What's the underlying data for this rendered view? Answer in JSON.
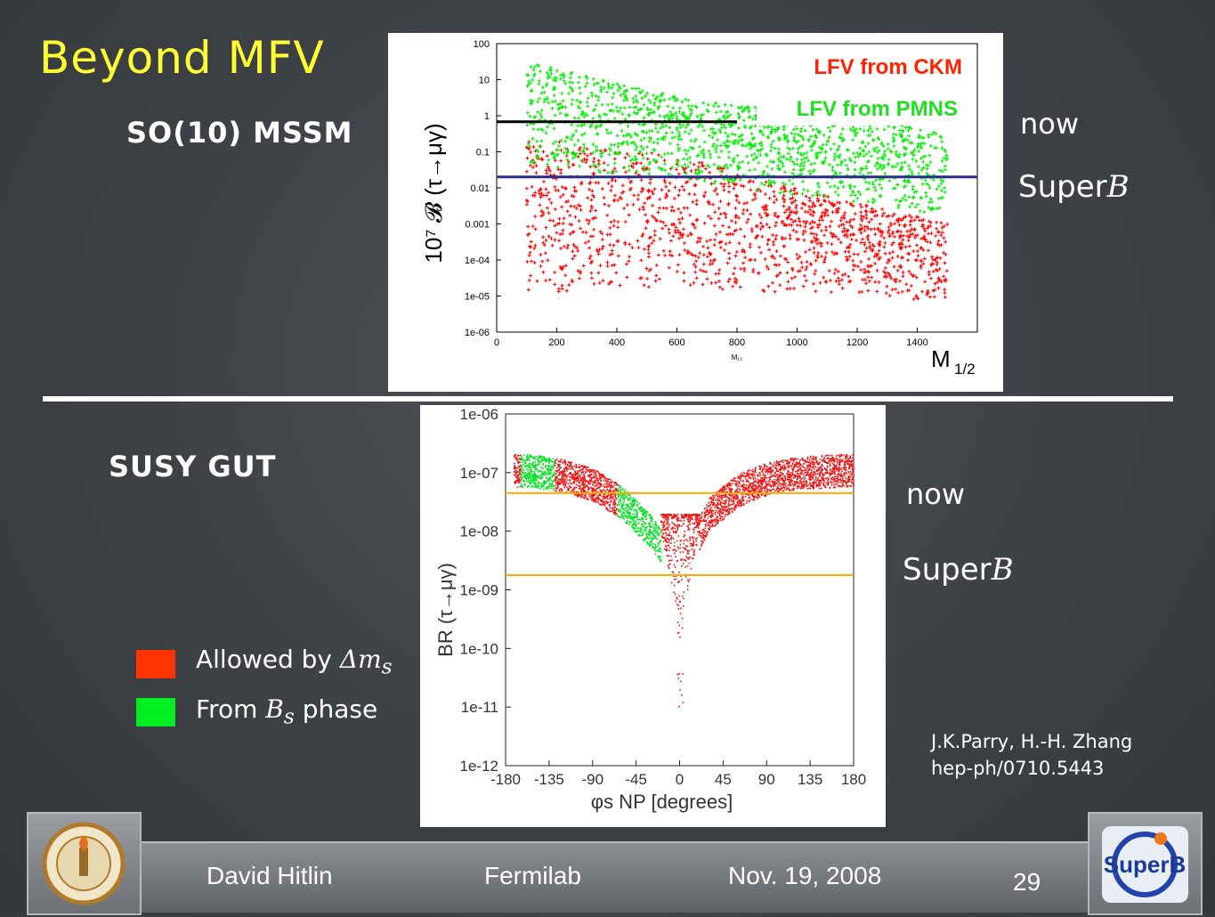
{
  "slide": {
    "title": "Beyond MFV",
    "top_heading": "SO(10) MSSM",
    "bottom_heading": "SUSY GUT",
    "now_label": "now",
    "superb_prefix": "Super",
    "superb_italic": "B",
    "legend": [
      {
        "text_before": "Allowed by ",
        "symbol": "Δm",
        "sub": "s",
        "text_after": "",
        "color": "#ff3300"
      },
      {
        "text_before": "From ",
        "symbol": "B",
        "sub": "s",
        "text_after": " phase",
        "color": "#00ee22"
      }
    ],
    "reference_line1": "J.K.Parry, H.-H. Zhang",
    "reference_line2": "hep-ph/0710.5443",
    "footer": {
      "author": "David Hitlin",
      "venue": "Fermilab",
      "date": "Nov. 19, 2008",
      "page": "29"
    },
    "logos": {
      "left": "caltech-seal",
      "right": "superb-logo",
      "right_text": "SuperB"
    }
  },
  "chart_data": [
    {
      "type": "scatter",
      "ylabel": "10⁷ 𝓑 (τ→μγ)",
      "xlabel": "M₁₂",
      "xlabel_extra": "M",
      "xlabel_extra_sub": "1/2",
      "xticks": [
        "0",
        "200",
        "400",
        "600",
        "800",
        "1000",
        "1200",
        "1400"
      ],
      "yticks": [
        "100",
        "10",
        "1",
        "0.1",
        "0.01",
        "0.001",
        "1e-04",
        "1e-05",
        "1e-06"
      ],
      "xlim": [
        0,
        1600
      ],
      "ylim_log10": [
        -6,
        2
      ],
      "series": [
        {
          "name": "LFV from CKM",
          "color": "#ff0000",
          "band_upper_log": [
            -0.6,
            -0.8,
            -1.0,
            -1.3,
            -1.8,
            -2.2,
            -2.6,
            -3.0
          ],
          "band_lower_log": [
            -4.9,
            -4.9,
            -4.8,
            -4.8,
            -4.9,
            -4.9,
            -5.0,
            -5.2
          ]
        },
        {
          "name": "LFV from PMNS",
          "color": "#00ee00",
          "band_upper_log": [
            1.5,
            1.1,
            0.7,
            0.4,
            0.2,
            0.0,
            -0.2,
            -0.5
          ],
          "band_lower_log": [
            -1.4,
            -1.6,
            -1.7,
            -1.9,
            -2.1,
            -2.3,
            -2.5,
            -2.8
          ]
        }
      ],
      "band_x": [
        100,
        300,
        500,
        700,
        900,
        1100,
        1300,
        1500
      ],
      "reference_lines": [
        {
          "label": "now",
          "value": 0.68,
          "x_range": [
            0,
            800
          ],
          "color": "#000000"
        },
        {
          "label": "SuperB",
          "value": 0.02,
          "x_range": [
            0,
            1600
          ],
          "color": "#2a2a88"
        }
      ]
    },
    {
      "type": "scatter",
      "xlabel": "φs NP [degrees]",
      "ylabel": "BR (τ→μγ)",
      "xticks": [
        "-180",
        "-135",
        "-90",
        "-45",
        "0",
        "45",
        "90",
        "135",
        "180"
      ],
      "yticks": [
        "1e-06",
        "1e-07",
        "1e-08",
        "1e-09",
        "1e-10",
        "1e-11",
        "1e-12"
      ],
      "xlim": [
        -180,
        180
      ],
      "ylim_log10": [
        -12,
        -6
      ],
      "curve_center_log": [
        -6.95,
        -6.97,
        -7.05,
        -7.2,
        -7.5,
        -8.0,
        -8.7,
        -7.7,
        -7.3,
        -7.1,
        -7.0,
        -6.95
      ],
      "curve_x": [
        -180,
        -150,
        -120,
        -90,
        -60,
        -30,
        0,
        30,
        60,
        90,
        120,
        180
      ],
      "green_x_ranges": [
        [
          -165,
          -130
        ],
        [
          -65,
          -20
        ]
      ],
      "reference_lines": [
        {
          "label": "now",
          "value_log": -7.35,
          "color": "#ffaa00"
        },
        {
          "label": "SuperB",
          "value_log": -8.75,
          "color": "#ffaa00"
        }
      ]
    }
  ]
}
